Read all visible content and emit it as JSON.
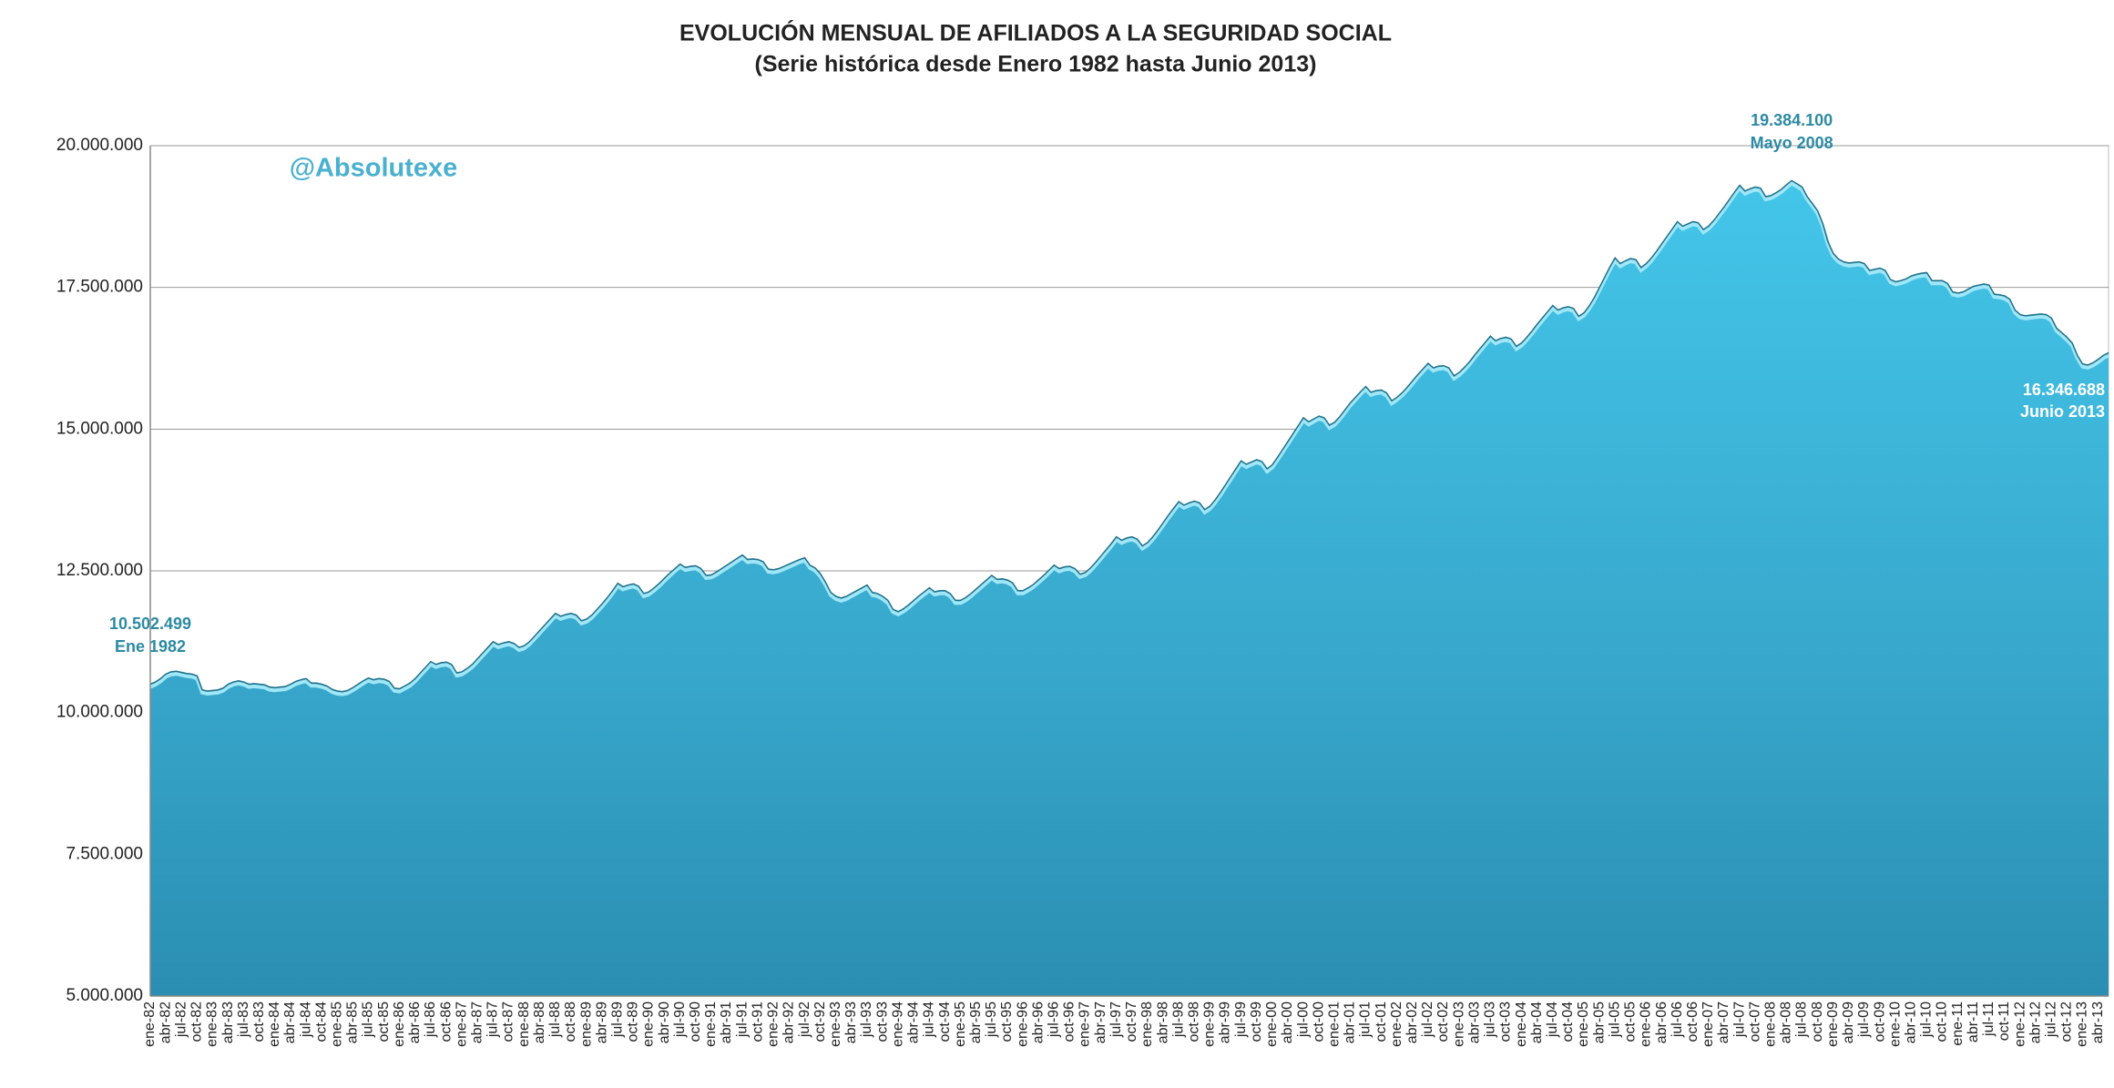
{
  "chart_data": {
    "type": "area",
    "title": "EVOLUCIÓN MENSUAL DE AFILIADOS A LA SEGURIDAD SOCIAL",
    "subtitle": "(Serie histórica desde Enero 1982 hasta Junio 2013)",
    "watermark": "@Absolutexe",
    "color": "#3dbfe3",
    "grid": true,
    "ylim": [
      5000000,
      20000000
    ],
    "yticks": [
      {
        "value": 5000000,
        "label": "5.000.000"
      },
      {
        "value": 7500000,
        "label": "7.500.000"
      },
      {
        "value": 10000000,
        "label": "10.000.000"
      },
      {
        "value": 12500000,
        "label": "12.500.000"
      },
      {
        "value": 15000000,
        "label": "15.000.000"
      },
      {
        "value": 17500000,
        "label": "17.500.000"
      },
      {
        "value": 20000000,
        "label": "20.000.000"
      }
    ],
    "annotations": [
      {
        "index": 0,
        "label": "10.502.499",
        "date": "Ene 1982"
      },
      {
        "index": 316,
        "label": "19.384.100",
        "date": "Mayo 2008"
      },
      {
        "index": 377,
        "label": "16.346.688",
        "date": "Junio 2013"
      }
    ],
    "categories": [
      "ene-82",
      null,
      null,
      "abr-82",
      null,
      null,
      "jul-82",
      null,
      null,
      "oct-82",
      null,
      null,
      "ene-83",
      null,
      null,
      "abr-83",
      null,
      null,
      "jul-83",
      null,
      null,
      "oct-83",
      null,
      null,
      "ene-84",
      null,
      null,
      "abr-84",
      null,
      null,
      "jul-84",
      null,
      null,
      "oct-84",
      null,
      null,
      "ene-85",
      null,
      null,
      "abr-85",
      null,
      null,
      "jul-85",
      null,
      null,
      "oct-85",
      null,
      null,
      "ene-86",
      null,
      null,
      "abr-86",
      null,
      null,
      "jul-86",
      null,
      null,
      "oct-86",
      null,
      null,
      "ene-87",
      null,
      null,
      "abr-87",
      null,
      null,
      "jul-87",
      null,
      null,
      "oct-87",
      null,
      null,
      "ene-88",
      null,
      null,
      "abr-88",
      null,
      null,
      "jul-88",
      null,
      null,
      "oct-88",
      null,
      null,
      "ene-89",
      null,
      null,
      "abr-89",
      null,
      null,
      "jul-89",
      null,
      null,
      "oct-89",
      null,
      null,
      "ene-90",
      null,
      null,
      "abr-90",
      null,
      null,
      "jul-90",
      null,
      null,
      "oct-90",
      null,
      null,
      "ene-91",
      null,
      null,
      "abr-91",
      null,
      null,
      "jul-91",
      null,
      null,
      "oct-91",
      null,
      null,
      "ene-92",
      null,
      null,
      "abr-92",
      null,
      null,
      "jul-92",
      null,
      null,
      "oct-92",
      null,
      null,
      "ene-93",
      null,
      null,
      "abr-93",
      null,
      null,
      "jul-93",
      null,
      null,
      "oct-93",
      null,
      null,
      "ene-94",
      null,
      null,
      "abr-94",
      null,
      null,
      "jul-94",
      null,
      null,
      "oct-94",
      null,
      null,
      "ene-95",
      null,
      null,
      "abr-95",
      null,
      null,
      "jul-95",
      null,
      null,
      "oct-95",
      null,
      null,
      "ene-96",
      null,
      null,
      "abr-96",
      null,
      null,
      "jul-96",
      null,
      null,
      "oct-96",
      null,
      null,
      "ene-97",
      null,
      null,
      "abr-97",
      null,
      null,
      "jul-97",
      null,
      null,
      "oct-97",
      null,
      null,
      "ene-98",
      null,
      null,
      "abr-98",
      null,
      null,
      "jul-98",
      null,
      null,
      "oct-98",
      null,
      null,
      "ene-99",
      null,
      null,
      "abr-99",
      null,
      null,
      "jul-99",
      null,
      null,
      "oct-99",
      null,
      null,
      "ene-00",
      null,
      null,
      "abr-00",
      null,
      null,
      "jul-00",
      null,
      null,
      "oct-00",
      null,
      null,
      "ene-01",
      null,
      null,
      "abr-01",
      null,
      null,
      "jul-01",
      null,
      null,
      "oct-01",
      null,
      null,
      "ene-02",
      null,
      null,
      "abr-02",
      null,
      null,
      "jul-02",
      null,
      null,
      "oct-02",
      null,
      null,
      "ene-03",
      null,
      null,
      "abr-03",
      null,
      null,
      "jul-03",
      null,
      null,
      "oct-03",
      null,
      null,
      "ene-04",
      null,
      null,
      "abr-04",
      null,
      null,
      "jul-04",
      null,
      null,
      "oct-04",
      null,
      null,
      "ene-05",
      null,
      null,
      "abr-05",
      null,
      null,
      "jul-05",
      null,
      null,
      "oct-05",
      null,
      null,
      "ene-06",
      null,
      null,
      "abr-06",
      null,
      null,
      "jul-06",
      null,
      null,
      "oct-06",
      null,
      null,
      "ene-07",
      null,
      null,
      "abr-07",
      null,
      null,
      "jul-07",
      null,
      null,
      "oct-07",
      null,
      null,
      "ene-08",
      null,
      null,
      "abr-08",
      null,
      null,
      "jul-08",
      null,
      null,
      "oct-08",
      null,
      null,
      "ene-09",
      null,
      null,
      "abr-09",
      null,
      null,
      "jul-09",
      null,
      null,
      "oct-09",
      null,
      null,
      "ene-10",
      null,
      null,
      "abr-10",
      null,
      null,
      "jul-10",
      null,
      null,
      "oct-10",
      null,
      null,
      "ene-11",
      null,
      null,
      "abr-11",
      null,
      null,
      "jul-11",
      null,
      null,
      "oct-11",
      null,
      null,
      "ene-12",
      null,
      null,
      "abr-12",
      null,
      null,
      "jul-12",
      null,
      null,
      "oct-12",
      null,
      null,
      "ene-13",
      null,
      null,
      "abr-13",
      null,
      null
    ],
    "values": [
      10502499,
      10540000,
      10600000,
      10680000,
      10720000,
      10730000,
      10710000,
      10690000,
      10680000,
      10650000,
      10400000,
      10380000,
      10390000,
      10400000,
      10430000,
      10500000,
      10540000,
      10560000,
      10540000,
      10500000,
      10510000,
      10500000,
      10490000,
      10450000,
      10440000,
      10450000,
      10460000,
      10500000,
      10550000,
      10580000,
      10600000,
      10520000,
      10520000,
      10500000,
      10470000,
      10410000,
      10380000,
      10370000,
      10390000,
      10440000,
      10500000,
      10560000,
      10610000,
      10580000,
      10600000,
      10590000,
      10550000,
      10430000,
      10420000,
      10470000,
      10520000,
      10600000,
      10700000,
      10800000,
      10900000,
      10850000,
      10880000,
      10890000,
      10850000,
      10700000,
      10720000,
      10780000,
      10850000,
      10950000,
      11050000,
      11150000,
      11250000,
      11200000,
      11230000,
      11250000,
      11220000,
      11150000,
      11180000,
      11250000,
      11350000,
      11450000,
      11550000,
      11650000,
      11750000,
      11700000,
      11730000,
      11750000,
      11720000,
      11620000,
      11650000,
      11720000,
      11820000,
      11920000,
      12030000,
      12150000,
      12280000,
      12220000,
      12250000,
      12270000,
      12230000,
      12100000,
      12130000,
      12200000,
      12280000,
      12370000,
      12460000,
      12540000,
      12620000,
      12560000,
      12580000,
      12590000,
      12540000,
      12420000,
      12430000,
      12480000,
      12540000,
      12600000,
      12660000,
      12720000,
      12780000,
      12700000,
      12710000,
      12700000,
      12660000,
      12530000,
      12520000,
      12540000,
      12580000,
      12620000,
      12660000,
      12700000,
      12730000,
      12600000,
      12550000,
      12450000,
      12300000,
      12120000,
      12050000,
      12020000,
      12050000,
      12100000,
      12150000,
      12200000,
      12250000,
      12120000,
      12100000,
      12050000,
      11980000,
      11820000,
      11780000,
      11830000,
      11900000,
      11980000,
      12060000,
      12130000,
      12200000,
      12130000,
      12150000,
      12150000,
      12100000,
      11980000,
      11980000,
      12030000,
      12100000,
      12180000,
      12260000,
      12340000,
      12420000,
      12350000,
      12360000,
      12340000,
      12290000,
      12150000,
      12150000,
      12200000,
      12260000,
      12340000,
      12420000,
      12510000,
      12600000,
      12540000,
      12570000,
      12580000,
      12540000,
      12440000,
      12470000,
      12550000,
      12650000,
      12760000,
      12870000,
      12980000,
      13100000,
      13040000,
      13080000,
      13100000,
      13060000,
      12940000,
      13000000,
      13100000,
      13220000,
      13350000,
      13480000,
      13600000,
      13720000,
      13660000,
      13700000,
      13730000,
      13700000,
      13580000,
      13640000,
      13750000,
      13880000,
      14020000,
      14160000,
      14300000,
      14440000,
      14380000,
      14420000,
      14460000,
      14430000,
      14300000,
      14370000,
      14500000,
      14640000,
      14780000,
      14920000,
      15060000,
      15200000,
      15130000,
      15180000,
      15230000,
      15200000,
      15070000,
      15120000,
      15220000,
      15340000,
      15460000,
      15560000,
      15660000,
      15750000,
      15650000,
      15680000,
      15690000,
      15640000,
      15500000,
      15560000,
      15640000,
      15740000,
      15850000,
      15960000,
      16060000,
      16160000,
      16080000,
      16110000,
      16120000,
      16080000,
      15940000,
      16000000,
      16090000,
      16190000,
      16310000,
      16420000,
      16530000,
      16640000,
      16560000,
      16600000,
      16620000,
      16590000,
      16460000,
      16520000,
      16620000,
      16730000,
      16850000,
      16960000,
      17070000,
      17180000,
      17100000,
      17140000,
      17160000,
      17130000,
      16990000,
      17050000,
      17170000,
      17320000,
      17500000,
      17680000,
      17860000,
      18020000,
      17920000,
      17970000,
      18010000,
      17990000,
      17850000,
      17920000,
      18020000,
      18140000,
      18270000,
      18400000,
      18530000,
      18660000,
      18580000,
      18620000,
      18660000,
      18640000,
      18520000,
      18580000,
      18680000,
      18800000,
      18920000,
      19050000,
      19180000,
      19300000,
      19200000,
      19240000,
      19270000,
      19250000,
      19100000,
      19120000,
      19170000,
      19230000,
      19310000,
      19384100,
      19330000,
      19270000,
      19100000,
      18980000,
      18850000,
      18620000,
      18300000,
      18100000,
      18000000,
      17950000,
      17930000,
      17940000,
      17950000,
      17920000,
      17800000,
      17820000,
      17840000,
      17800000,
      17640000,
      17600000,
      17620000,
      17650000,
      17700000,
      17730000,
      17750000,
      17760000,
      17620000,
      17620000,
      17620000,
      17570000,
      17420000,
      17400000,
      17420000,
      17470000,
      17520000,
      17540000,
      17560000,
      17540000,
      17380000,
      17370000,
      17350000,
      17290000,
      17100000,
      17020000,
      17000000,
      17010000,
      17020000,
      17030000,
      17020000,
      16960000,
      16780000,
      16700000,
      16620000,
      16520000,
      16300000,
      16150000,
      16130000,
      16170000,
      16230000,
      16300000,
      16346688
    ]
  }
}
